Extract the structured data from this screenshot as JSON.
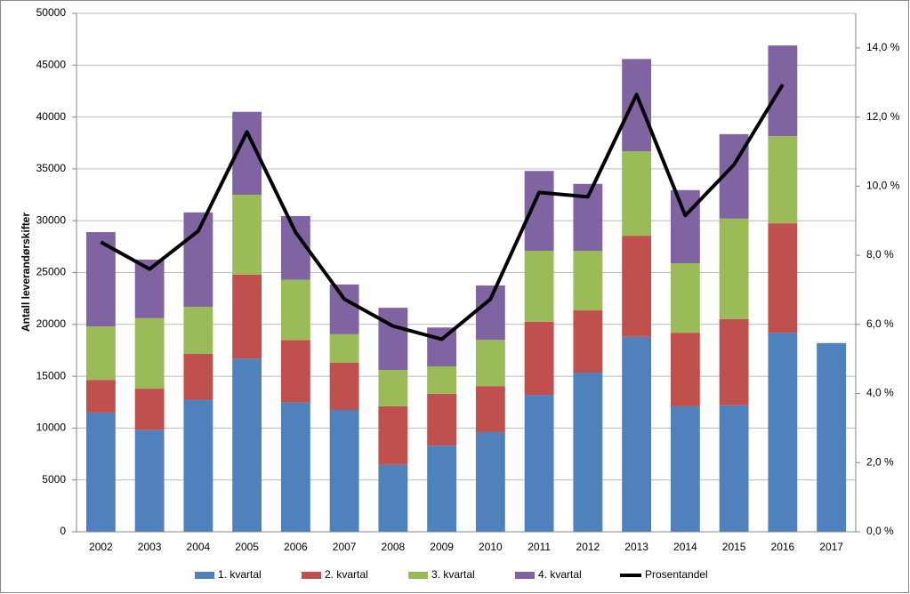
{
  "chart_data": {
    "type": "bar",
    "stacked": true,
    "y_label": "Antall leverandørskifter",
    "categories": [
      "2002",
      "2003",
      "2004",
      "2005",
      "2006",
      "2007",
      "2008",
      "2009",
      "2010",
      "2011",
      "2012",
      "2013",
      "2014",
      "2015",
      "2016",
      "2017"
    ],
    "series": [
      {
        "name": "1. kvartal",
        "color": "#4f81bd",
        "values": [
          11500,
          9800,
          12700,
          16700,
          12450,
          11750,
          6450,
          8300,
          9600,
          13200,
          15350,
          18800,
          12100,
          12200,
          19200,
          18200
        ]
      },
      {
        "name": "2. kvartal",
        "color": "#c0504d",
        "values": [
          3150,
          4000,
          4450,
          8100,
          6050,
          4550,
          5650,
          5000,
          4450,
          7050,
          6000,
          9750,
          7100,
          8300,
          10550,
          null
        ]
      },
      {
        "name": "3. kvartal",
        "color": "#9bbb59",
        "values": [
          5150,
          6800,
          4550,
          7700,
          5800,
          2750,
          3500,
          2650,
          4450,
          6850,
          5750,
          8150,
          6700,
          9700,
          8400,
          null
        ]
      },
      {
        "name": "4. kvartal",
        "color": "#8064a2",
        "values": [
          9100,
          5650,
          9100,
          8000,
          6150,
          4800,
          6000,
          3750,
          5250,
          7700,
          6450,
          8900,
          7050,
          8150,
          8750,
          null
        ]
      },
      {
        "name": "Prosentandel",
        "color": "#000000",
        "type": "line",
        "axis": "y2",
        "values": [
          8.38,
          7.6,
          8.7,
          11.57,
          8.66,
          6.73,
          5.95,
          5.57,
          6.73,
          9.82,
          9.69,
          12.65,
          9.15,
          10.62,
          12.94,
          null
        ]
      }
    ],
    "ylim": [
      0,
      50000
    ],
    "yticks": [
      0,
      5000,
      10000,
      15000,
      20000,
      25000,
      30000,
      35000,
      40000,
      45000,
      50000
    ],
    "y2lim": [
      0,
      15
    ],
    "y2ticks": [
      {
        "value": 0,
        "label": "0,0 %"
      },
      {
        "value": 2,
        "label": "2,0 %"
      },
      {
        "value": 4,
        "label": "4,0 %"
      },
      {
        "value": 6,
        "label": "6,0 %"
      },
      {
        "value": 8,
        "label": "8,0 %"
      },
      {
        "value": 10,
        "label": "10,0 %"
      },
      {
        "value": 12,
        "label": "12,0 %"
      },
      {
        "value": 14,
        "label": "14,0 %"
      }
    ],
    "grid": true,
    "legend": "bottom"
  }
}
